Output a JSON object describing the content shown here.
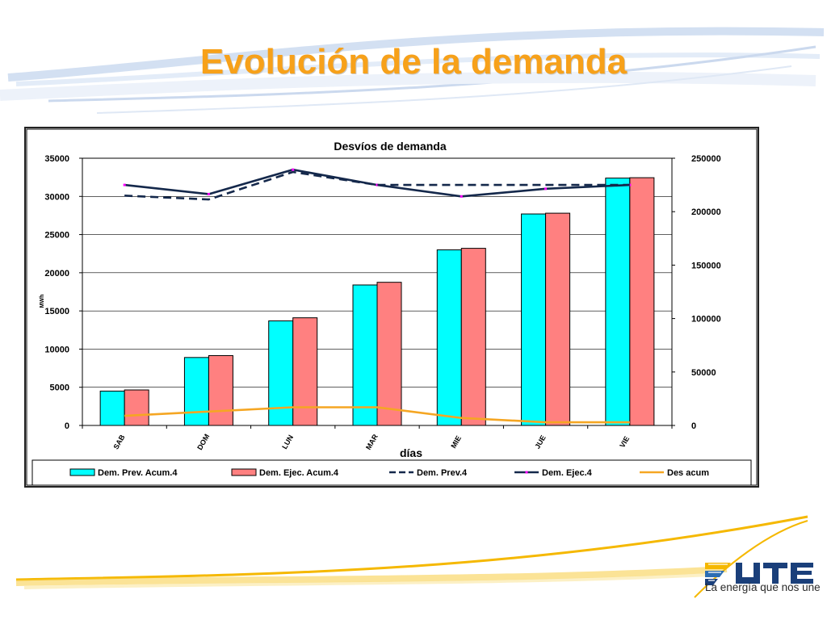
{
  "slide": {
    "title": "Evolución de la demanda",
    "logo_text": "UTE",
    "logo_tagline": "La energía que nos une"
  },
  "colors": {
    "title": "#f7a11a",
    "prev_acum_bar": "#00ffff",
    "ejec_acum_bar": "#ff8080",
    "prev_line": "#14284b",
    "ejec_line": "#14284b",
    "ejec_marker": "#ff00ff",
    "des_acum_line": "#f5a623",
    "swoosh_yellow": "#f5b800",
    "swoosh_blue": "#c9daf0"
  },
  "chart_data": {
    "type": "bar",
    "title": "Desvíos de demanda",
    "xlabel": "días",
    "ylabel": "MWh",
    "ylabel_right": "",
    "categories": [
      "SAB",
      "DOM",
      "LUN",
      "MAR",
      "MIE",
      "JUE",
      "VIE"
    ],
    "ylim": [
      0,
      35000
    ],
    "yticks": [
      0,
      5000,
      10000,
      15000,
      20000,
      25000,
      30000,
      35000
    ],
    "y2lim": [
      0,
      250000
    ],
    "y2ticks": [
      0,
      50000,
      100000,
      150000,
      200000,
      250000
    ],
    "grid": true,
    "legend_position": "bottom",
    "series": [
      {
        "name": "Dem. Prev. Acum.4",
        "kind": "bar",
        "axis": "left",
        "values": [
          4500,
          8900,
          13700,
          18400,
          23000,
          27700,
          32400
        ]
      },
      {
        "name": "Dem. Ejec. Acum.4",
        "kind": "bar",
        "axis": "left",
        "values": [
          4650,
          9150,
          14100,
          18750,
          23200,
          27800,
          32450
        ]
      },
      {
        "name": "Dem. Prev.4",
        "kind": "line",
        "style": "dashed",
        "axis": "left",
        "values": [
          30100,
          29600,
          33200,
          31500,
          31500,
          31500,
          31500
        ]
      },
      {
        "name": "Dem. Ejec.4",
        "kind": "line",
        "style": "solid",
        "axis": "left",
        "values": [
          31500,
          30300,
          33500,
          31500,
          30000,
          31000,
          31500
        ]
      },
      {
        "name": "Des acum",
        "kind": "line",
        "style": "solid",
        "axis": "right",
        "values": [
          9000,
          13000,
          17000,
          17000,
          7000,
          3000,
          3000
        ]
      }
    ]
  }
}
